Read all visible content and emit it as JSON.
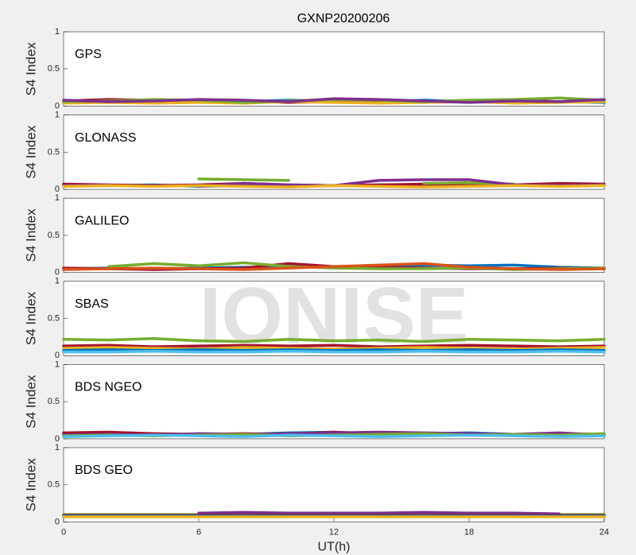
{
  "watermark": "IONISE",
  "chart_data": [
    {
      "type": "line",
      "title": "GXNP20200206",
      "label": "GPS",
      "ylabel": "S4 Index",
      "xlim": [
        0,
        24
      ],
      "ylim": [
        0,
        1
      ],
      "yticks": [
        0,
        0.5,
        1
      ],
      "x": [
        0,
        2,
        4,
        6,
        8,
        10,
        12,
        14,
        16,
        18,
        20,
        22,
        24
      ],
      "series": [
        {
          "color": "#0072bd",
          "values": [
            0.05,
            0.06,
            0.05,
            0.07,
            0.06,
            0.08,
            0.07,
            0.06,
            0.08,
            0.06,
            0.05,
            0.06,
            0.05
          ]
        },
        {
          "color": "#a2142f",
          "values": [
            0.07,
            0.09,
            0.08,
            0.06,
            0.07,
            0.05,
            0.06,
            0.07,
            0.05,
            0.07,
            0.08,
            0.06,
            0.07
          ]
        },
        {
          "color": "#edb120",
          "values": [
            0.04,
            0.05,
            0.04,
            0.05,
            0.04,
            0.06,
            0.05,
            0.04,
            0.05,
            0.06,
            0.04,
            0.05,
            0.06
          ]
        },
        {
          "color": "#77ac30",
          "values": [
            0.06,
            0.07,
            0.09,
            0.08,
            0.05,
            0.07,
            0.09,
            0.08,
            0.06,
            0.08,
            0.09,
            0.11,
            0.08
          ]
        },
        {
          "color": "#7e2f8e",
          "values": [
            0.08,
            0.06,
            0.07,
            0.09,
            0.08,
            0.06,
            0.1,
            0.09,
            0.07,
            0.05,
            0.07,
            0.06,
            0.09
          ]
        }
      ]
    },
    {
      "type": "line",
      "label": "GLONASS",
      "ylabel": "S4 Index",
      "xlim": [
        0,
        24
      ],
      "ylim": [
        0,
        1
      ],
      "yticks": [
        0,
        0.5,
        1
      ],
      "x": [
        0,
        2,
        4,
        6,
        8,
        10,
        12,
        14,
        16,
        18,
        20,
        22,
        24
      ],
      "series": [
        {
          "color": "#0072bd",
          "values": [
            0.06,
            0.05,
            0.06,
            0.04,
            0.05,
            0.04,
            0.05,
            0.06,
            0.05,
            0.04,
            0.06,
            0.05,
            0.06
          ]
        },
        {
          "color": "#a2142f",
          "values": [
            0.07,
            0.06,
            0.05,
            0.06,
            0.08,
            0.06,
            0.05,
            0.06,
            0.07,
            0.05,
            0.06,
            0.08,
            0.07
          ]
        },
        {
          "color": "#77ac30",
          "values": [
            null,
            null,
            null,
            0.14,
            0.13,
            0.12,
            null,
            null,
            0.08,
            0.09,
            0.07,
            null,
            null
          ]
        },
        {
          "color": "#7e2f8e",
          "values": [
            0.05,
            0.06,
            null,
            0.04,
            0.08,
            0.06,
            0.05,
            0.12,
            0.13,
            0.13,
            0.06,
            0.05,
            0.06
          ]
        },
        {
          "color": "#edb120",
          "values": [
            0.04,
            0.05,
            0.04,
            0.05,
            0.04,
            0.03,
            0.05,
            0.04,
            0.03,
            0.04,
            0.05,
            0.04,
            0.05
          ]
        }
      ]
    },
    {
      "type": "line",
      "label": "GALILEO",
      "ylabel": "S4 Index",
      "xlim": [
        0,
        24
      ],
      "ylim": [
        0,
        1
      ],
      "yticks": [
        0,
        0.5,
        1
      ],
      "x": [
        0,
        2,
        4,
        6,
        8,
        10,
        12,
        14,
        16,
        18,
        20,
        22,
        24
      ],
      "series": [
        {
          "color": "#0072bd",
          "values": [
            0.05,
            0.06,
            0.05,
            0.06,
            0.07,
            0.07,
            0.08,
            0.09,
            0.1,
            0.09,
            0.1,
            0.07,
            0.06
          ]
        },
        {
          "color": "#a2142f",
          "values": [
            0.06,
            0.05,
            0.04,
            0.05,
            0.06,
            0.12,
            0.08,
            0.07,
            0.06,
            0.05,
            0.05,
            0.06,
            0.05
          ]
        },
        {
          "color": "#77ac30",
          "values": [
            null,
            0.08,
            0.12,
            0.09,
            0.13,
            0.08,
            0.06,
            0.05,
            0.05,
            0.06,
            0.04,
            0.05,
            0.06
          ]
        },
        {
          "color": "#d95319",
          "values": [
            0.04,
            0.05,
            0.06,
            0.05,
            0.04,
            0.06,
            0.08,
            0.1,
            0.12,
            0.07,
            0.05,
            0.04,
            0.05
          ]
        }
      ]
    },
    {
      "type": "line",
      "label": "SBAS",
      "ylabel": "S4 Index",
      "xlim": [
        0,
        24
      ],
      "ylim": [
        0,
        1
      ],
      "yticks": [
        0,
        0.5,
        1
      ],
      "x": [
        0,
        2,
        4,
        6,
        8,
        10,
        12,
        14,
        16,
        18,
        20,
        22,
        24
      ],
      "series": [
        {
          "color": "#77ac30",
          "values": [
            0.22,
            0.21,
            0.23,
            0.2,
            0.19,
            0.22,
            0.2,
            0.21,
            0.19,
            0.22,
            0.21,
            0.2,
            0.22
          ]
        },
        {
          "color": "#a2142f",
          "values": [
            0.13,
            0.14,
            0.12,
            0.13,
            0.14,
            0.13,
            0.14,
            0.12,
            0.13,
            0.14,
            0.13,
            0.12,
            0.13
          ]
        },
        {
          "color": "#edb120",
          "values": [
            0.1,
            0.11,
            0.1,
            0.09,
            0.11,
            0.1,
            0.09,
            0.1,
            0.11,
            0.1,
            0.09,
            0.1,
            0.11
          ]
        },
        {
          "color": "#0072bd",
          "values": [
            0.07,
            0.08,
            0.07,
            0.08,
            0.07,
            0.08,
            0.07,
            0.08,
            0.07,
            0.08,
            0.07,
            0.08,
            0.07
          ]
        },
        {
          "color": "#4dbeee",
          "values": [
            0.05,
            0.05,
            0.06,
            0.05,
            0.05,
            0.06,
            0.05,
            0.05,
            0.06,
            0.05,
            0.05,
            0.06,
            0.05
          ]
        }
      ]
    },
    {
      "type": "line",
      "label": "BDS NGEO",
      "ylabel": "S4 Index",
      "xlim": [
        0,
        24
      ],
      "ylim": [
        0,
        1
      ],
      "yticks": [
        0,
        0.5,
        1
      ],
      "x": [
        0,
        2,
        4,
        6,
        8,
        10,
        12,
        14,
        16,
        18,
        20,
        22,
        24
      ],
      "series": [
        {
          "color": "#0072bd",
          "values": [
            0.06,
            0.07,
            0.06,
            0.05,
            0.06,
            0.08,
            0.09,
            0.06,
            0.07,
            0.08,
            0.06,
            0.05,
            0.06
          ]
        },
        {
          "color": "#a2142f",
          "values": [
            0.08,
            0.09,
            0.07,
            0.06,
            0.07,
            0.06,
            0.09,
            0.07,
            0.06,
            0.05,
            0.06,
            0.07,
            0.06
          ]
        },
        {
          "color": "#7e2f8e",
          "values": [
            0.05,
            0.06,
            0.05,
            0.07,
            0.06,
            0.07,
            0.08,
            0.09,
            0.08,
            0.07,
            0.06,
            0.08,
            0.05
          ]
        },
        {
          "color": "#77ac30",
          "values": [
            0.04,
            0.05,
            0.04,
            0.05,
            0.06,
            0.04,
            0.05,
            0.06,
            0.07,
            0.05,
            0.06,
            0.05,
            0.07
          ]
        },
        {
          "color": "#4dbeee",
          "values": [
            0.03,
            0.04,
            0.05,
            0.04,
            0.03,
            0.05,
            0.04,
            0.03,
            0.04,
            0.05,
            0.04,
            0.03,
            0.04
          ]
        }
      ]
    },
    {
      "type": "line",
      "label": "BDS GEO",
      "ylabel": "S4 Index",
      "xlabel": "UT(h)",
      "xlim": [
        0,
        24
      ],
      "ylim": [
        0,
        1
      ],
      "yticks": [
        0,
        0.5,
        1
      ],
      "xticks": [
        0,
        6,
        12,
        18,
        24
      ],
      "x": [
        0,
        2,
        4,
        6,
        8,
        10,
        12,
        14,
        16,
        18,
        20,
        22,
        24
      ],
      "series": [
        {
          "color": "#77ac30",
          "values": [
            0.1,
            0.1,
            0.1,
            0.1,
            0.1,
            0.1,
            0.1,
            0.1,
            0.1,
            0.1,
            0.1,
            0.1,
            0.1
          ]
        },
        {
          "color": "#7e2f8e",
          "values": [
            null,
            null,
            null,
            0.12,
            0.13,
            0.12,
            0.12,
            0.12,
            0.13,
            0.12,
            0.12,
            0.11,
            null
          ]
        },
        {
          "color": "#a2142f",
          "values": [
            0.09,
            0.09,
            0.09,
            0.09,
            0.09,
            0.09,
            0.09,
            0.09,
            0.09,
            0.09,
            0.09,
            0.09,
            0.09
          ]
        },
        {
          "color": "#0072bd",
          "values": [
            0.08,
            0.08,
            0.08,
            0.08,
            0.08,
            0.08,
            0.08,
            0.08,
            0.08,
            0.08,
            0.08,
            0.08,
            0.08
          ]
        },
        {
          "color": "#edb120",
          "values": [
            0.07,
            0.07,
            0.07,
            0.07,
            0.07,
            0.07,
            0.07,
            0.07,
            0.07,
            0.07,
            0.07,
            0.07,
            0.07
          ]
        }
      ]
    }
  ]
}
